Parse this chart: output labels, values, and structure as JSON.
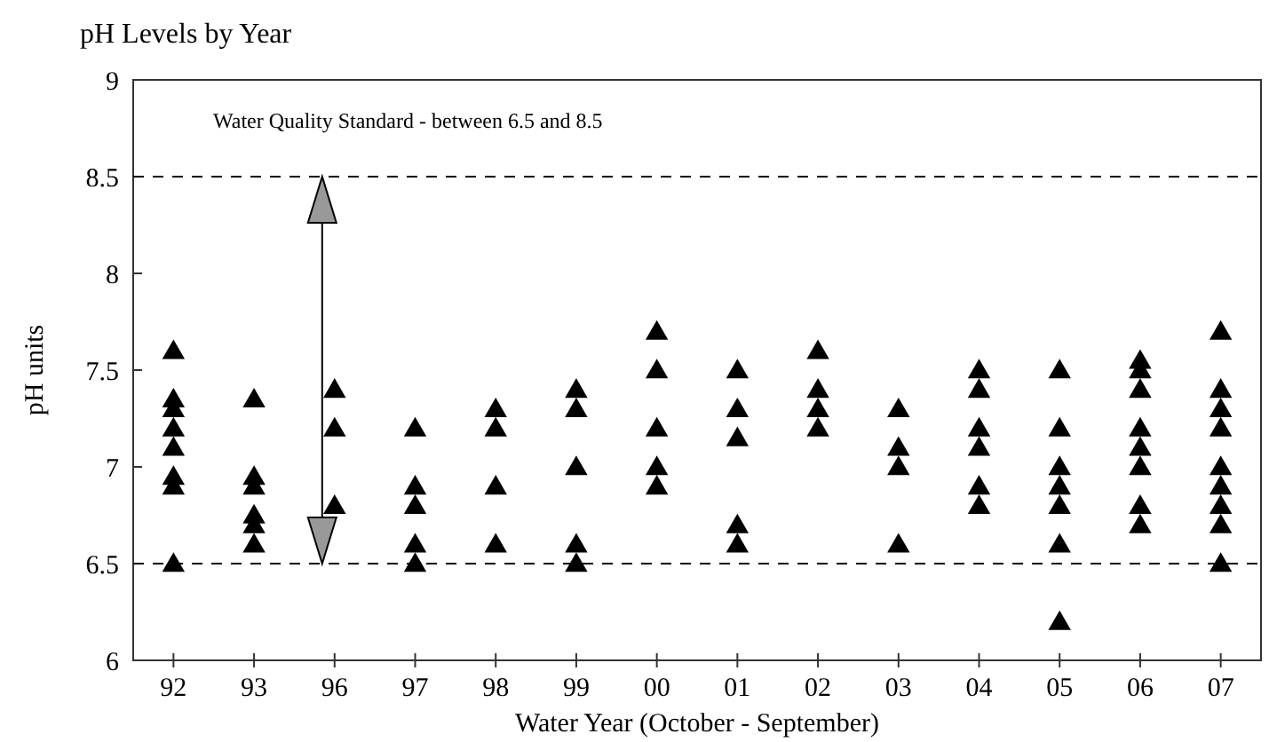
{
  "chart_data": {
    "type": "scatter",
    "title": "pH Levels by Year",
    "xlabel": "Water Year (October - September)",
    "ylabel": "pH units",
    "categories": [
      "92",
      "93",
      "96",
      "97",
      "98",
      "99",
      "00",
      "01",
      "02",
      "03",
      "04",
      "05",
      "06",
      "07"
    ],
    "series": [
      {
        "color": "#000000",
        "x": [
          "92",
          "92",
          "92",
          "92",
          "92",
          "92",
          "92",
          "92",
          "93",
          "93",
          "93",
          "93",
          "93",
          "93",
          "96",
          "96",
          "96",
          "97",
          "97",
          "97",
          "97",
          "97",
          "98",
          "98",
          "98",
          "98",
          "99",
          "99",
          "99",
          "99",
          "99",
          "00",
          "00",
          "00",
          "00",
          "00",
          "01",
          "01",
          "01",
          "01",
          "01",
          "02",
          "02",
          "02",
          "02",
          "03",
          "03",
          "03",
          "03",
          "04",
          "04",
          "04",
          "04",
          "04",
          "04",
          "05",
          "05",
          "05",
          "05",
          "05",
          "05",
          "05",
          "06",
          "06",
          "06",
          "06",
          "06",
          "06",
          "06",
          "06",
          "07",
          "07",
          "07",
          "07",
          "07",
          "07",
          "07",
          "07",
          "07"
        ],
        "values": [
          7.6,
          7.35,
          7.3,
          7.2,
          7.1,
          6.95,
          6.9,
          6.5,
          7.35,
          6.95,
          6.9,
          6.75,
          6.7,
          6.6,
          7.4,
          7.2,
          6.8,
          7.2,
          6.9,
          6.8,
          6.6,
          6.5,
          7.3,
          7.2,
          6.9,
          6.6,
          7.4,
          7.3,
          7.0,
          6.6,
          6.5,
          7.7,
          7.5,
          7.2,
          7.0,
          6.9,
          7.5,
          7.3,
          7.15,
          6.7,
          6.6,
          7.6,
          7.4,
          7.3,
          7.2,
          7.3,
          7.1,
          7.0,
          6.6,
          7.5,
          7.4,
          7.2,
          7.1,
          6.9,
          6.8,
          7.5,
          7.2,
          7.0,
          6.9,
          6.8,
          6.6,
          6.2,
          7.55,
          7.5,
          7.4,
          7.2,
          7.1,
          7.0,
          6.8,
          6.7,
          7.7,
          7.4,
          7.3,
          7.2,
          7.0,
          6.9,
          6.8,
          6.7,
          6.5
        ]
      }
    ],
    "ylim": [
      6,
      9
    ],
    "yticks": [
      6,
      6.5,
      7,
      7.5,
      8,
      8.5,
      9
    ],
    "marker": "triangle",
    "grid": false,
    "ref_lines": [
      {
        "axis": "y",
        "value": 8.5,
        "line_style": "dashed",
        "color": "#000000"
      },
      {
        "axis": "y",
        "value": 6.5,
        "line_style": "dashed",
        "color": "#000000"
      }
    ],
    "annotations": [
      "Water Quality Standard - between 6.5 and 8.5"
    ]
  }
}
